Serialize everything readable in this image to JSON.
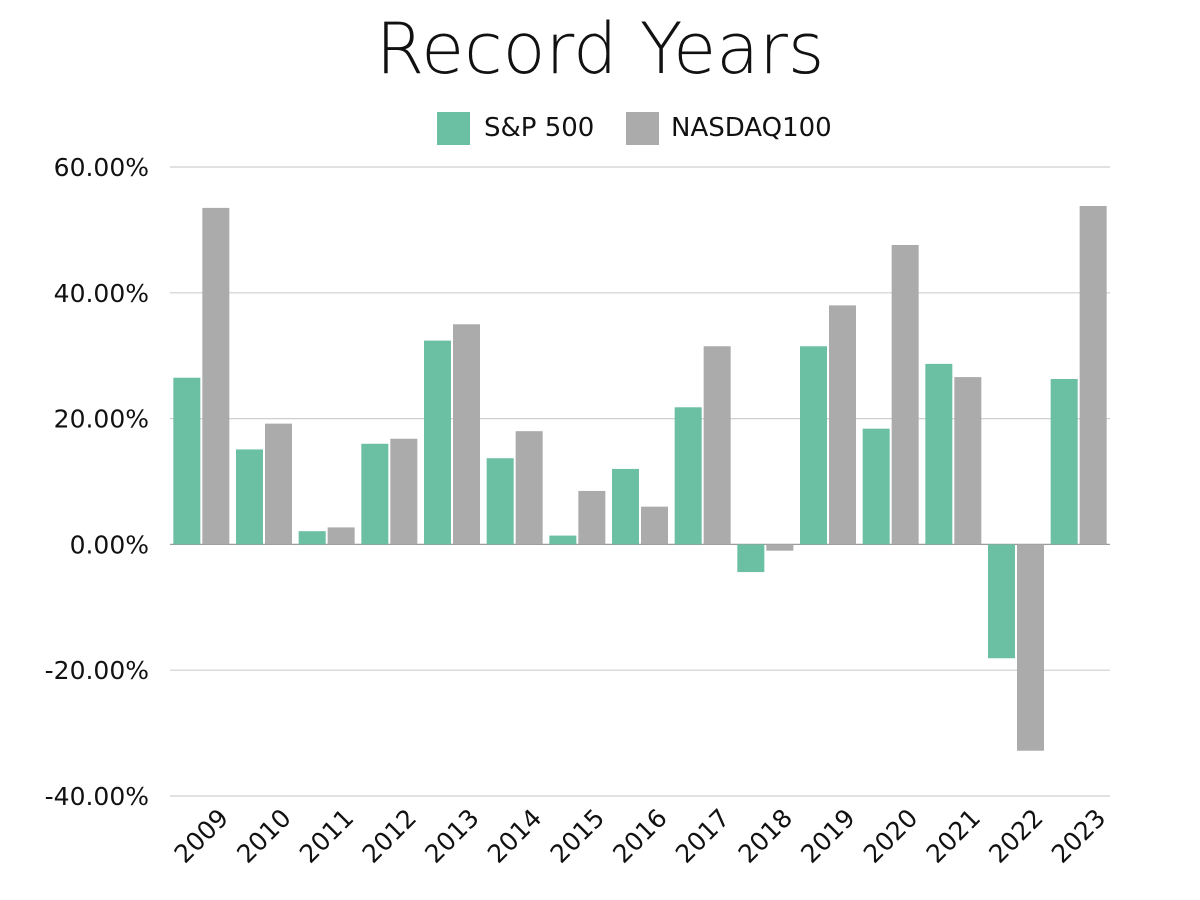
{
  "chart_data": {
    "type": "bar",
    "title": "Record Years",
    "categories": [
      "2009",
      "2010",
      "2011",
      "2012",
      "2013",
      "2014",
      "2015",
      "2016",
      "2017",
      "2018",
      "2019",
      "2020",
      "2021",
      "2022",
      "2023"
    ],
    "series": [
      {
        "name": "S&P 500",
        "color": "#6BBFA3",
        "values": [
          26.5,
          15.1,
          2.1,
          16.0,
          32.4,
          13.7,
          1.4,
          12.0,
          21.8,
          -4.4,
          31.5,
          18.4,
          28.7,
          -18.1,
          26.3
        ]
      },
      {
        "name": "NASDAQ100",
        "color": "#ABABAB",
        "values": [
          53.5,
          19.2,
          2.7,
          16.8,
          35.0,
          18.0,
          8.5,
          6.0,
          31.5,
          -1.0,
          38.0,
          47.6,
          26.6,
          -32.8,
          53.8
        ]
      }
    ],
    "y_ticks": [
      "60.00%",
      "40.00%",
      "20.00%",
      "0.00%",
      "-20.00%",
      "-40.00%"
    ],
    "ylim": [
      -40,
      60
    ],
    "grid": true,
    "legend_position": "top-center"
  }
}
